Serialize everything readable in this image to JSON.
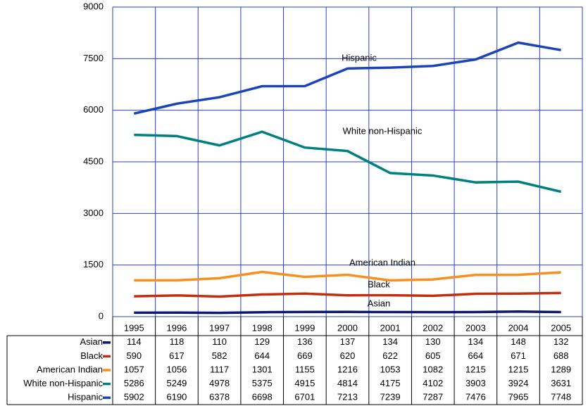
{
  "chart_data": {
    "type": "line",
    "categories": [
      "1995",
      "1996",
      "1997",
      "1998",
      "1999",
      "2000",
      "2001",
      "2002",
      "2003",
      "2004",
      "2005"
    ],
    "series": [
      {
        "name": "Asian",
        "color": "#0b1a6e",
        "values": [
          114,
          118,
          110,
          129,
          136,
          137,
          134,
          130,
          134,
          148,
          132
        ]
      },
      {
        "name": "Black",
        "color": "#c0300f",
        "values": [
          590,
          617,
          582,
          644,
          669,
          620,
          622,
          605,
          664,
          671,
          688
        ]
      },
      {
        "name": "American Indian",
        "color": "#f7901e",
        "values": [
          1057,
          1056,
          1117,
          1301,
          1155,
          1216,
          1053,
          1082,
          1215,
          1215,
          1289
        ]
      },
      {
        "name": "White non-Hispanic",
        "color": "#008080",
        "values": [
          5286,
          5249,
          4978,
          5375,
          4915,
          4814,
          4175,
          4102,
          3903,
          3924,
          3631
        ]
      },
      {
        "name": "Hispanic",
        "color": "#1a44b8",
        "values": [
          5902,
          6190,
          6378,
          6698,
          6701,
          7213,
          7239,
          7287,
          7476,
          7965,
          7748
        ]
      }
    ],
    "ylim": [
      0,
      9000
    ],
    "yticks": [
      0,
      1500,
      3000,
      4500,
      6000,
      7500,
      9000
    ],
    "grid": true
  }
}
